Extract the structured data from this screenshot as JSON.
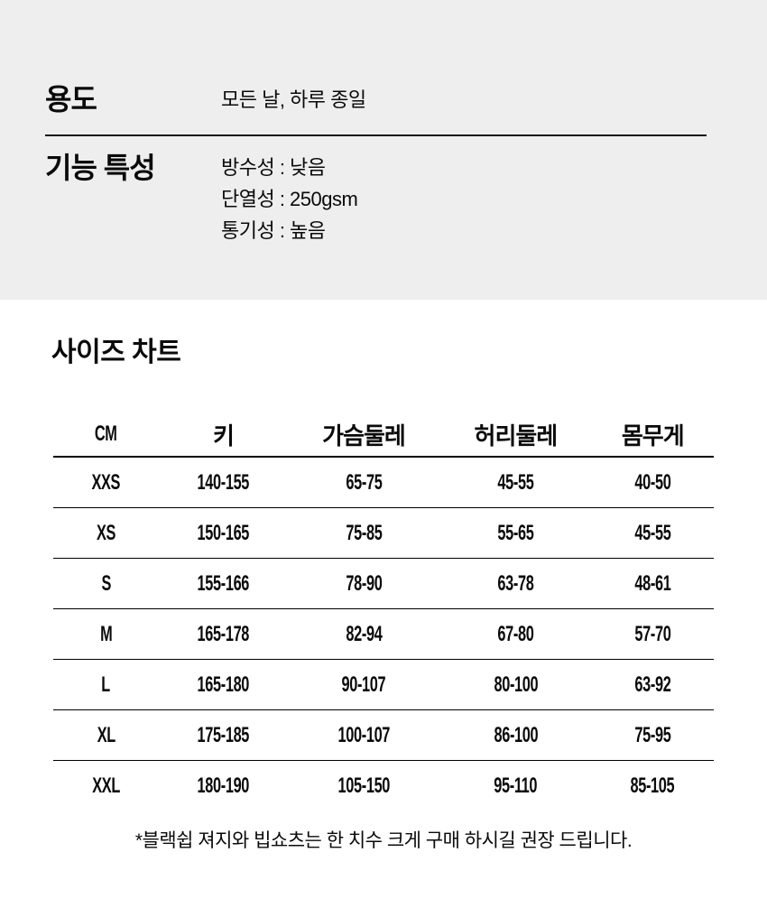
{
  "colors": {
    "page_bg": "#ffffff",
    "section_bg": "#eeeeee",
    "text": "#0a0a0a",
    "line": "#000000"
  },
  "specs": {
    "usage_label": "용도",
    "usage_value": "모든 날, 하루 종일",
    "features_label": "기능 특성",
    "features": [
      "방수성 : 낮음",
      "단열성 : 250gsm",
      "통기성 : 높음"
    ]
  },
  "size_chart": {
    "title": "사이즈 차트",
    "unit_label": "CM",
    "columns": [
      "키",
      "가슴둘레",
      "허리둘레",
      "몸무게"
    ],
    "rows": [
      {
        "size": "XXS",
        "values": [
          "140-155",
          "65-75",
          "45-55",
          "40-50"
        ]
      },
      {
        "size": "XS",
        "values": [
          "150-165",
          "75-85",
          "55-65",
          "45-55"
        ]
      },
      {
        "size": "S",
        "values": [
          "155-166",
          "78-90",
          "63-78",
          "48-61"
        ]
      },
      {
        "size": "M",
        "values": [
          "165-178",
          "82-94",
          "67-80",
          "57-70"
        ]
      },
      {
        "size": "L",
        "values": [
          "165-180",
          "90-107",
          "80-100",
          "63-92"
        ]
      },
      {
        "size": "XL",
        "values": [
          "175-185",
          "100-107",
          "86-100",
          "75-95"
        ]
      },
      {
        "size": "XXL",
        "values": [
          "180-190",
          "105-150",
          "95-110",
          "85-105"
        ]
      }
    ],
    "note": "*블랙쉽 져지와 빕쇼츠는 한 치수 크게 구매 하시길 권장 드립니다."
  }
}
